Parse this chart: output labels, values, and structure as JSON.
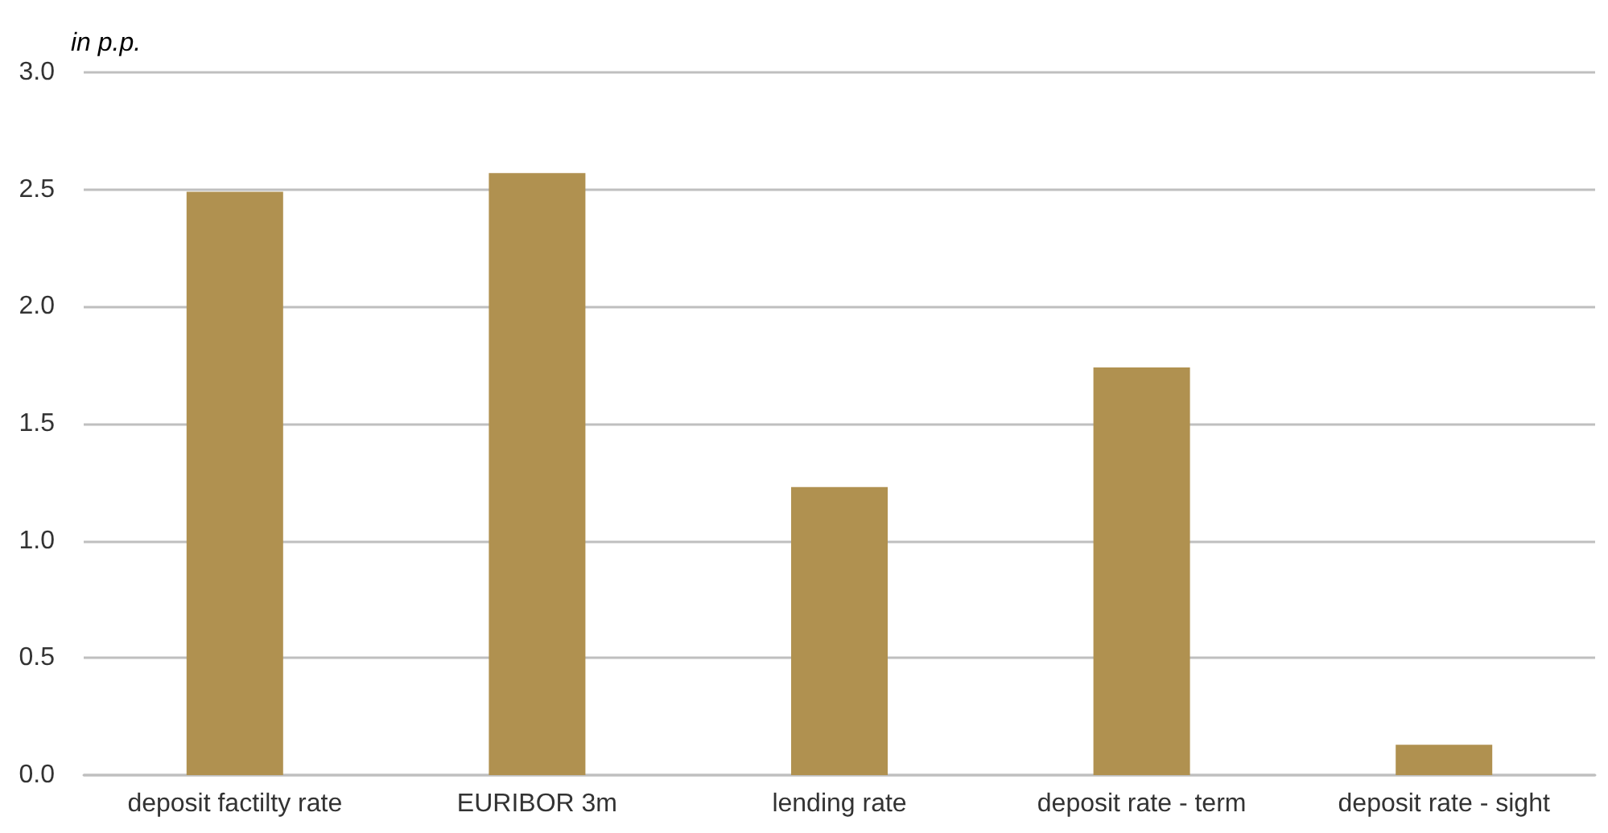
{
  "chart_data": {
    "type": "bar",
    "ylabel": "in p.p.",
    "categories": [
      "deposit factilty rate",
      "EURIBOR 3m",
      "lending rate",
      "deposit rate - term",
      "deposit rate - sight"
    ],
    "values": [
      2.49,
      2.57,
      1.23,
      1.74,
      0.13
    ],
    "color": "#b09150",
    "ylim": [
      0,
      3
    ],
    "yticks": [
      {
        "value": 0,
        "label": "0.0"
      },
      0.5,
      {
        "value": 1,
        "label": "1.0"
      },
      1.5,
      {
        "value": 2,
        "label": "2.0"
      },
      2.5,
      {
        "value": 3,
        "label": "3.0"
      }
    ],
    "grid": "y"
  }
}
